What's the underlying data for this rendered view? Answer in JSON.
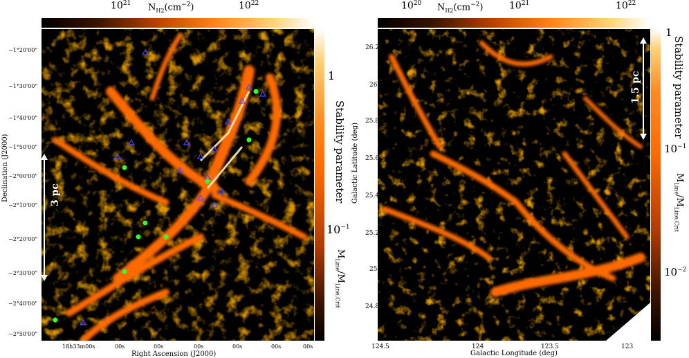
{
  "left": {
    "colorbar_top": {
      "lo": "10",
      "lo_exp": "21",
      "label_main": "N",
      "label_sub": "H2",
      "label_unit": "(cm",
      "label_unit_exp": "−2",
      "label_close": ")",
      "hi": "10",
      "hi_exp": "22"
    },
    "colorbar_side": {
      "tick1": "1",
      "tick2": "10",
      "tick2_exp": "−1",
      "title": "Stability parameter",
      "ratio_num": "M",
      "ratio_num_sub": "Line",
      "ratio_den": "/M",
      "ratio_den_sub": "Line,Crit"
    },
    "y_axis_label": "Declination (J2000)",
    "x_axis_label": "Right Ascension (J2000)",
    "dec_ticks": [
      "−1°20'00\"",
      "−1°30'00\"",
      "−1°40'00\"",
      "−1°50'00\"",
      "−2°00'00\"",
      "−2°10'00\"",
      "−2°20'00\"",
      "−2°30'00\"",
      "−2°40'00\"",
      "−2°50'00\""
    ],
    "ra_ticks": [
      "18h33m00s",
      "00s",
      "00s",
      "00s",
      "00s",
      "00s",
      "00s"
    ],
    "scale_bar": "3 pc"
  },
  "right": {
    "colorbar_top": {
      "lo": "10",
      "lo_exp": "20",
      "label_main": "N",
      "label_sub": "H2",
      "label_unit": "(cm",
      "label_unit_exp": "−2",
      "label_close": ")",
      "mid": "10",
      "mid_exp": "21",
      "hi": "10",
      "hi_exp": "22"
    },
    "colorbar_side": {
      "tick1": "1",
      "tick2": "10",
      "tick2_exp": "−1",
      "tick3": "10",
      "tick3_exp": "−2",
      "title": "Stability parameter",
      "ratio_num": "M",
      "ratio_num_sub": "Line",
      "ratio_den": "/M",
      "ratio_den_sub": "Line,Crit"
    },
    "y_axis_label": "Galactic Latitude (deg)",
    "x_axis_label": "Galactic Longitude (deg)",
    "lat_ticks": [
      "26.2",
      "26",
      "25.8",
      "25.6",
      "25.4",
      "25.2",
      "25",
      "24.8"
    ],
    "lon_ticks": [
      "124.5",
      "124",
      "123.5",
      "123"
    ],
    "scale_bar": "1.5 pc"
  },
  "colors": {
    "background": "#000000",
    "filament": "#ff6a00",
    "triangle": "#4a48ff",
    "star": "#33ff33"
  }
}
